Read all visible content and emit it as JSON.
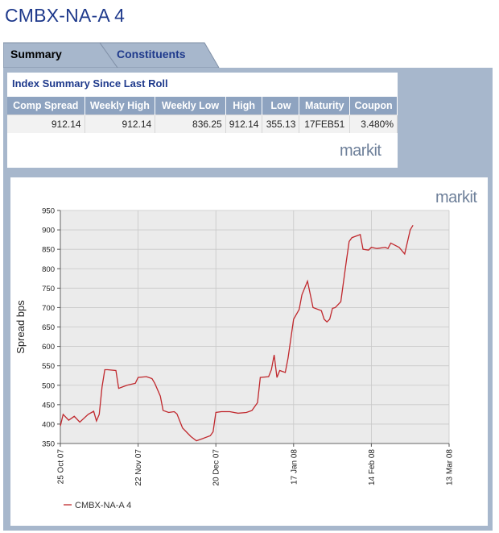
{
  "page_title": "CMBX-NA-A 4",
  "tabs": [
    {
      "label": "Summary",
      "active": true
    },
    {
      "label": "Constituents",
      "active": false
    }
  ],
  "summary": {
    "title": "Index Summary Since Last Roll",
    "columns": [
      "Comp Spread",
      "Weekly High",
      "Weekly Low",
      "High",
      "Low",
      "Maturity",
      "Coupon"
    ],
    "row": [
      "912.14",
      "912.14",
      "836.25",
      "912.14",
      "355.13",
      "17FEB51",
      "3.480%"
    ],
    "logo": "markit"
  },
  "chart_logo": "markit",
  "colors": {
    "title": "#1f3a8c",
    "panel": "#a7b7cc",
    "header": "#8ea3c0",
    "line": "#c0282d",
    "plot_bg": "#ebebeb"
  },
  "chart_data": {
    "type": "line",
    "title": "",
    "xlabel": "",
    "ylabel": "Spread bps",
    "ylim": [
      350,
      950
    ],
    "yticks": [
      350,
      400,
      450,
      500,
      550,
      600,
      650,
      700,
      750,
      800,
      850,
      900,
      950
    ],
    "xlim": [
      "2007-10-25",
      "2008-03-13"
    ],
    "xticks": [
      {
        "date": "2007-10-25",
        "label": "25 Oct 07"
      },
      {
        "date": "2007-11-22",
        "label": "22 Nov 07"
      },
      {
        "date": "2007-12-20",
        "label": "20 Dec 07"
      },
      {
        "date": "2008-01-17",
        "label": "17 Jan 08"
      },
      {
        "date": "2008-02-14",
        "label": "14 Feb 08"
      },
      {
        "date": "2008-03-13",
        "label": "13 Mar 08"
      }
    ],
    "grid": true,
    "legend_position": "bottom-left",
    "series": [
      {
        "name": "CMBX-NA-A 4",
        "points": [
          [
            "2007-10-25",
            395
          ],
          [
            "2007-10-26",
            425
          ],
          [
            "2007-10-28",
            410
          ],
          [
            "2007-10-30",
            420
          ],
          [
            "2007-11-01",
            405
          ],
          [
            "2007-11-04",
            425
          ],
          [
            "2007-11-06",
            433
          ],
          [
            "2007-11-07",
            408
          ],
          [
            "2007-11-08",
            425
          ],
          [
            "2007-11-09",
            495
          ],
          [
            "2007-11-10",
            540
          ],
          [
            "2007-11-11",
            540
          ],
          [
            "2007-11-14",
            538
          ],
          [
            "2007-11-15",
            492
          ],
          [
            "2007-11-18",
            500
          ],
          [
            "2007-11-21",
            505
          ],
          [
            "2007-11-22",
            520
          ],
          [
            "2007-11-25",
            522
          ],
          [
            "2007-11-27",
            517
          ],
          [
            "2007-11-28",
            505
          ],
          [
            "2007-11-30",
            472
          ],
          [
            "2007-12-01",
            435
          ],
          [
            "2007-12-03",
            430
          ],
          [
            "2007-12-05",
            432
          ],
          [
            "2007-12-06",
            426
          ],
          [
            "2007-12-08",
            390
          ],
          [
            "2007-12-11",
            368
          ],
          [
            "2007-12-13",
            357
          ],
          [
            "2007-12-15",
            362
          ],
          [
            "2007-12-18",
            370
          ],
          [
            "2007-12-19",
            380
          ],
          [
            "2007-12-20",
            430
          ],
          [
            "2007-12-22",
            432
          ],
          [
            "2007-12-25",
            432
          ],
          [
            "2007-12-28",
            428
          ],
          [
            "2007-12-31",
            430
          ],
          [
            "2008-01-02",
            435
          ],
          [
            "2008-01-04",
            455
          ],
          [
            "2008-01-05",
            520
          ],
          [
            "2008-01-08",
            522
          ],
          [
            "2008-01-09",
            540
          ],
          [
            "2008-01-10",
            578
          ],
          [
            "2008-01-11",
            520
          ],
          [
            "2008-01-12",
            538
          ],
          [
            "2008-01-14",
            533
          ],
          [
            "2008-01-15",
            570
          ],
          [
            "2008-01-17",
            670
          ],
          [
            "2008-01-19",
            695
          ],
          [
            "2008-01-20",
            733
          ],
          [
            "2008-01-22",
            768
          ],
          [
            "2008-01-24",
            700
          ],
          [
            "2008-01-27",
            692
          ],
          [
            "2008-01-28",
            670
          ],
          [
            "2008-01-29",
            663
          ],
          [
            "2008-01-30",
            670
          ],
          [
            "2008-01-31",
            698
          ],
          [
            "2008-02-01",
            700
          ],
          [
            "2008-02-03",
            715
          ],
          [
            "2008-02-05",
            820
          ],
          [
            "2008-02-06",
            870
          ],
          [
            "2008-02-07",
            880
          ],
          [
            "2008-02-10",
            888
          ],
          [
            "2008-02-11",
            850
          ],
          [
            "2008-02-13",
            848
          ],
          [
            "2008-02-14",
            855
          ],
          [
            "2008-02-16",
            852
          ],
          [
            "2008-02-19",
            855
          ],
          [
            "2008-02-20",
            852
          ],
          [
            "2008-02-21",
            866
          ],
          [
            "2008-02-24",
            855
          ],
          [
            "2008-02-26",
            838
          ],
          [
            "2008-02-28",
            900
          ],
          [
            "2008-02-29",
            912
          ]
        ]
      }
    ]
  }
}
